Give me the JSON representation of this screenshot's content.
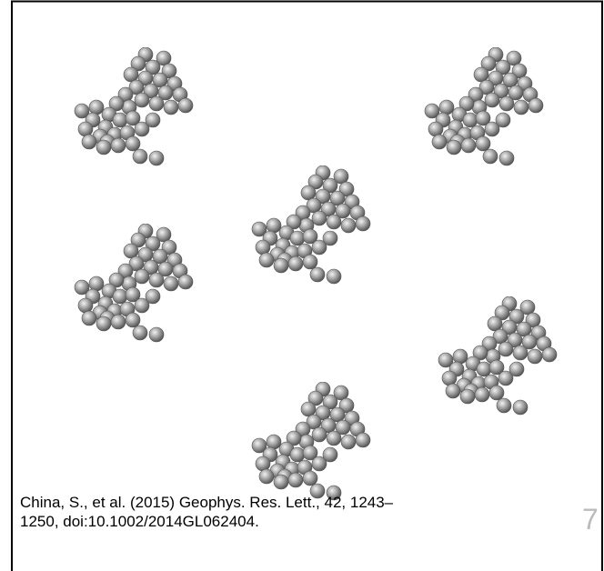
{
  "citation": [
    "China, S., et al. (2015) Geophys. Res. Lett., 42, 1243–",
    "1250, doi:10.1002/2014GL062404."
  ],
  "slide_number": "7"
}
